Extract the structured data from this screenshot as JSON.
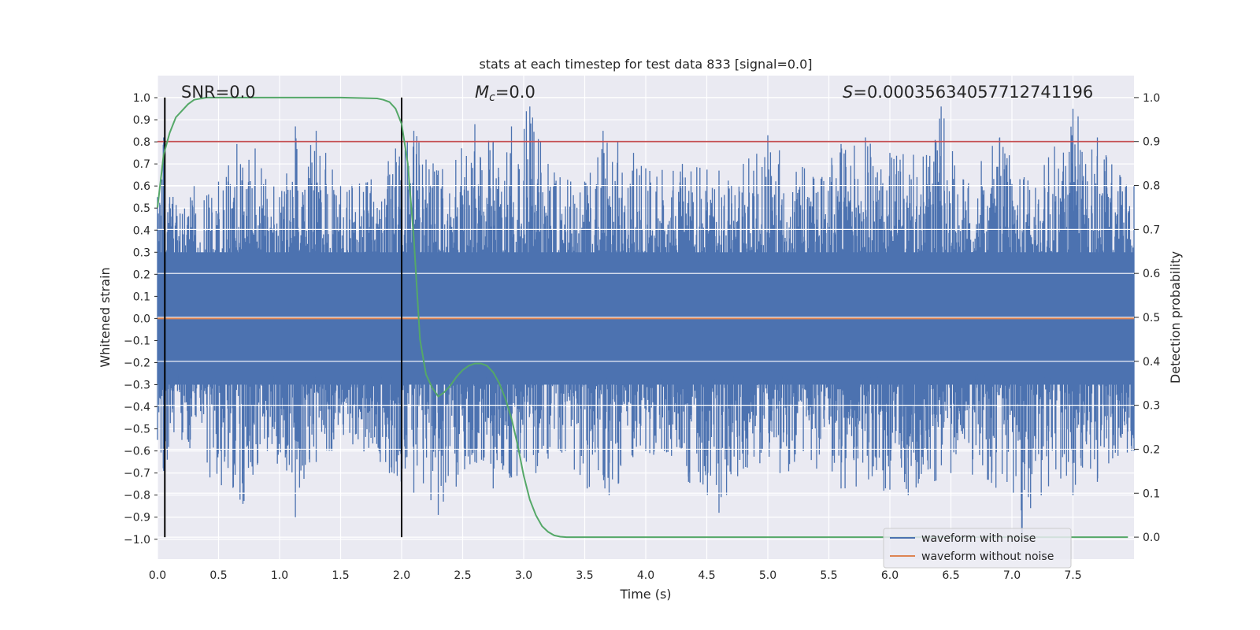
{
  "chart_data": {
    "type": "line",
    "title": "stats at each timestep for test data 833 [signal=0.0]",
    "xlabel": "Time (s)",
    "ylabel": "Whitened strain",
    "y2label": "Detection probability",
    "xlim": [
      0.0,
      8.0
    ],
    "ylim": [
      -1.09,
      1.1
    ],
    "y2lim": [
      -0.05,
      1.05
    ],
    "x_ticks": [
      "0.0",
      "0.5",
      "1.0",
      "1.5",
      "2.0",
      "2.5",
      "3.0",
      "3.5",
      "4.0",
      "4.5",
      "5.0",
      "5.5",
      "6.0",
      "6.5",
      "7.0",
      "7.5"
    ],
    "y_ticks": [
      "1.0",
      "0.9",
      "0.8",
      "0.7",
      "0.6",
      "0.5",
      "0.4",
      "0.3",
      "0.2",
      "0.1",
      "0.0",
      "−0.1",
      "−0.2",
      "−0.3",
      "−0.4",
      "−0.5",
      "−0.6",
      "−0.7",
      "−0.8",
      "−0.9",
      "−1.0"
    ],
    "y2_ticks": [
      "1.0",
      "0.9",
      "0.8",
      "0.7",
      "0.6",
      "0.5",
      "0.4",
      "0.3",
      "0.2",
      "0.1",
      "0.0"
    ],
    "grid": true,
    "legend_position": "bottom-right",
    "annotations": {
      "snr": "SNR=0.0",
      "mc_symbol": "M",
      "mc_sub": "c",
      "mc_value": "=0.0",
      "s_symbol": "S",
      "s_value": "=0.00035634057712741196"
    },
    "series": [
      {
        "name": "waveform with noise",
        "color": "#4c72b0",
        "envelope_upper": [
          [
            0.0,
            0.55
          ],
          [
            0.05,
            0.82
          ],
          [
            0.1,
            0.55
          ],
          [
            0.3,
            0.6
          ],
          [
            0.5,
            0.62
          ],
          [
            0.65,
            0.79
          ],
          [
            0.8,
            0.77
          ],
          [
            1.0,
            0.55
          ],
          [
            1.13,
            0.87
          ],
          [
            1.3,
            0.85
          ],
          [
            1.5,
            0.6
          ],
          [
            1.75,
            0.63
          ],
          [
            1.95,
            0.77
          ],
          [
            2.1,
            0.85
          ],
          [
            2.3,
            0.67
          ],
          [
            2.6,
            0.88
          ],
          [
            2.75,
            0.8
          ],
          [
            2.9,
            0.87
          ],
          [
            3.05,
            0.96
          ],
          [
            3.2,
            0.7
          ],
          [
            3.5,
            0.62
          ],
          [
            3.65,
            0.85
          ],
          [
            3.9,
            0.75
          ],
          [
            4.0,
            0.68
          ],
          [
            4.3,
            0.7
          ],
          [
            4.6,
            0.67
          ],
          [
            4.8,
            0.7
          ],
          [
            5.0,
            0.83
          ],
          [
            5.3,
            0.68
          ],
          [
            5.6,
            0.79
          ],
          [
            5.8,
            0.82
          ],
          [
            6.0,
            0.75
          ],
          [
            6.3,
            0.74
          ],
          [
            6.42,
            0.96
          ],
          [
            6.6,
            0.63
          ],
          [
            6.9,
            0.82
          ],
          [
            7.1,
            0.64
          ],
          [
            7.3,
            0.73
          ],
          [
            7.5,
            0.95
          ],
          [
            7.7,
            0.82
          ],
          [
            8.0,
            0.6
          ]
        ],
        "envelope_lower": [
          [
            0.0,
            -0.55
          ],
          [
            0.05,
            -0.69
          ],
          [
            0.2,
            -0.55
          ],
          [
            0.43,
            -0.72
          ],
          [
            0.7,
            -0.84
          ],
          [
            0.9,
            -0.6
          ],
          [
            1.13,
            -0.9
          ],
          [
            1.3,
            -0.65
          ],
          [
            1.6,
            -0.57
          ],
          [
            1.9,
            -0.7
          ],
          [
            2.1,
            -0.79
          ],
          [
            2.3,
            -0.89
          ],
          [
            2.6,
            -0.65
          ],
          [
            2.75,
            -0.77
          ],
          [
            2.9,
            -0.72
          ],
          [
            3.1,
            -0.7
          ],
          [
            3.3,
            -0.6
          ],
          [
            3.52,
            -0.77
          ],
          [
            3.7,
            -0.8
          ],
          [
            4.0,
            -0.6
          ],
          [
            4.35,
            -0.74
          ],
          [
            4.6,
            -0.88
          ],
          [
            4.8,
            -0.68
          ],
          [
            5.1,
            -0.7
          ],
          [
            5.4,
            -0.68
          ],
          [
            5.6,
            -0.77
          ],
          [
            5.95,
            -0.78
          ],
          [
            6.15,
            -0.8
          ],
          [
            6.5,
            -0.7
          ],
          [
            6.8,
            -0.73
          ],
          [
            7.08,
            -0.98
          ],
          [
            7.3,
            -0.76
          ],
          [
            7.5,
            -0.8
          ],
          [
            7.7,
            -0.74
          ],
          [
            8.0,
            -0.6
          ]
        ],
        "core_band": [
          -0.3,
          0.3
        ]
      },
      {
        "name": "waveform without noise",
        "color": "#dd8452",
        "x": [
          0.0,
          8.0
        ],
        "values": [
          0.0,
          0.0
        ]
      },
      {
        "name": "",
        "axis": "right",
        "color": "#55a868",
        "x": [
          0.0,
          0.05,
          0.1,
          0.15,
          0.2,
          0.25,
          0.3,
          0.4,
          0.5,
          1.0,
          1.5,
          1.8,
          1.85,
          1.9,
          1.95,
          2.0,
          2.05,
          2.1,
          2.15,
          2.2,
          2.25,
          2.3,
          2.35,
          2.4,
          2.45,
          2.5,
          2.55,
          2.6,
          2.65,
          2.7,
          2.75,
          2.8,
          2.85,
          2.9,
          2.95,
          3.0,
          3.05,
          3.1,
          3.15,
          3.2,
          3.25,
          3.3,
          3.35,
          3.4,
          3.5,
          4.0,
          5.0,
          6.0,
          7.0,
          7.95
        ],
        "values": [
          0.75,
          0.87,
          0.92,
          0.955,
          0.97,
          0.985,
          0.995,
          1.0,
          1.0,
          1.0,
          1.0,
          0.998,
          0.995,
          0.99,
          0.975,
          0.94,
          0.85,
          0.68,
          0.45,
          0.37,
          0.34,
          0.32,
          0.33,
          0.345,
          0.365,
          0.38,
          0.39,
          0.395,
          0.395,
          0.39,
          0.375,
          0.35,
          0.315,
          0.27,
          0.21,
          0.14,
          0.085,
          0.05,
          0.025,
          0.012,
          0.004,
          0.001,
          0.0,
          0.0,
          0.0,
          0.0,
          0.0,
          0.0,
          0.0,
          0.0
        ]
      },
      {
        "name": "",
        "color": "#c44e52",
        "axis": "right",
        "x": [
          0.0,
          8.0
        ],
        "values": [
          0.9,
          0.9
        ]
      }
    ],
    "vertical_lines": [
      0.06,
      2.0
    ],
    "vertical_line_color": "#000000"
  }
}
